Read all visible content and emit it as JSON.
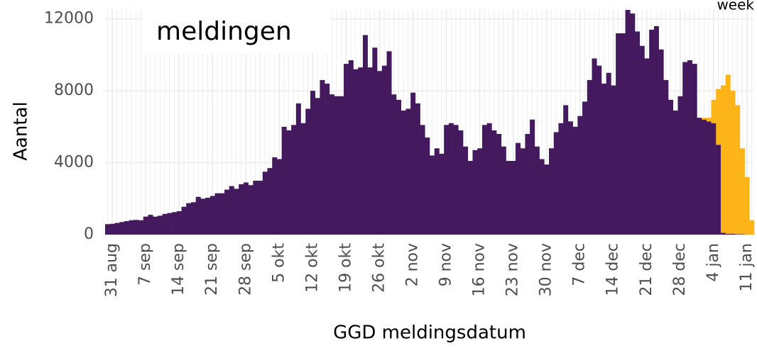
{
  "chart_data": {
    "type": "stacked-bar",
    "title": "meldingen",
    "legend_title": "week",
    "x_label": "GGD meldingsdatum",
    "y_label": "Aantal",
    "categories": [
      null,
      "31 aug",
      null,
      null,
      null,
      null,
      null,
      null,
      "7 sep",
      null,
      null,
      null,
      null,
      null,
      null,
      "14 sep",
      null,
      null,
      null,
      null,
      null,
      null,
      "21 sep",
      null,
      null,
      null,
      null,
      null,
      null,
      "28 sep",
      null,
      null,
      null,
      null,
      null,
      null,
      "5 okt",
      null,
      null,
      null,
      null,
      null,
      null,
      "12 okt",
      null,
      null,
      null,
      null,
      null,
      null,
      "19 okt",
      null,
      null,
      null,
      null,
      null,
      null,
      "26 okt",
      null,
      null,
      null,
      null,
      null,
      null,
      "2 nov",
      null,
      null,
      null,
      null,
      null,
      null,
      "9 nov",
      null,
      null,
      null,
      null,
      null,
      null,
      "16 nov",
      null,
      null,
      null,
      null,
      null,
      null,
      "23 nov",
      null,
      null,
      null,
      null,
      null,
      null,
      "30 nov",
      null,
      null,
      null,
      null,
      null,
      null,
      "7 dec",
      null,
      null,
      null,
      null,
      null,
      null,
      "14 dec",
      null,
      null,
      null,
      null,
      null,
      null,
      "21 dec",
      null,
      null,
      null,
      null,
      null,
      null,
      "28 dec",
      null,
      null,
      null,
      null,
      null,
      null,
      "4 jan",
      null,
      null,
      null,
      null,
      null,
      null,
      "11 jan",
      null
    ],
    "series": [
      {
        "color": "#44195e",
        "values": [
          580,
          600,
          650,
          700,
          750,
          800,
          820,
          800,
          1000,
          1100,
          1000,
          1050,
          1150,
          1200,
          1250,
          1300,
          1550,
          1750,
          1800,
          2100,
          2000,
          2050,
          2150,
          2300,
          2300,
          2500,
          2700,
          2550,
          2800,
          2900,
          2750,
          3000,
          3000,
          3500,
          3700,
          4300,
          4200,
          6000,
          5800,
          6100,
          7300,
          6200,
          7000,
          8000,
          7600,
          8600,
          8400,
          7800,
          7700,
          7700,
          9500,
          9700,
          9200,
          9300,
          11100,
          9300,
          10400,
          9100,
          9400,
          10200,
          7800,
          7500,
          6900,
          7000,
          7900,
          7300,
          6100,
          5400,
          4400,
          4800,
          4500,
          6100,
          6200,
          6100,
          5800,
          4900,
          4100,
          4700,
          4800,
          6100,
          6200,
          5800,
          5600,
          4900,
          4100,
          4100,
          5100,
          4800,
          5600,
          6400,
          4900,
          4200,
          3900,
          4800,
          5700,
          6200,
          7200,
          6300,
          6000,
          6600,
          7400,
          8600,
          9800,
          9400,
          8400,
          9000,
          8300,
          11200,
          11200,
          12500,
          12300,
          11300,
          10500,
          9800,
          11400,
          11600,
          10300,
          8600,
          7500,
          6900,
          7700,
          9600,
          9700,
          9500,
          6500,
          6400,
          6300,
          6200,
          5000,
          100,
          50,
          50,
          30,
          20,
          10,
          0
        ]
      },
      {
        "color": "#fdb419",
        "values": [
          0,
          0,
          0,
          0,
          0,
          0,
          0,
          0,
          0,
          0,
          0,
          0,
          0,
          0,
          0,
          0,
          0,
          0,
          0,
          0,
          0,
          0,
          0,
          0,
          0,
          0,
          0,
          0,
          0,
          0,
          0,
          0,
          0,
          0,
          0,
          0,
          0,
          0,
          0,
          0,
          0,
          0,
          0,
          0,
          0,
          0,
          0,
          0,
          0,
          0,
          0,
          0,
          0,
          0,
          0,
          0,
          0,
          0,
          0,
          0,
          0,
          0,
          0,
          0,
          0,
          0,
          0,
          0,
          0,
          0,
          0,
          0,
          0,
          0,
          0,
          0,
          0,
          0,
          0,
          0,
          0,
          0,
          0,
          0,
          0,
          0,
          0,
          0,
          0,
          0,
          0,
          0,
          0,
          0,
          0,
          0,
          0,
          0,
          0,
          0,
          0,
          0,
          0,
          0,
          0,
          0,
          0,
          0,
          0,
          0,
          0,
          0,
          0,
          0,
          0,
          0,
          0,
          0,
          0,
          0,
          0,
          0,
          0,
          0,
          0,
          100,
          200,
          1300,
          3100,
          8200,
          8850,
          7950,
          7170,
          4780,
          3190,
          800
        ]
      }
    ],
    "ylim": [
      0,
      12500
    ],
    "yticks": [
      0,
      4000,
      8000,
      12000
    ],
    "grid": true
  }
}
